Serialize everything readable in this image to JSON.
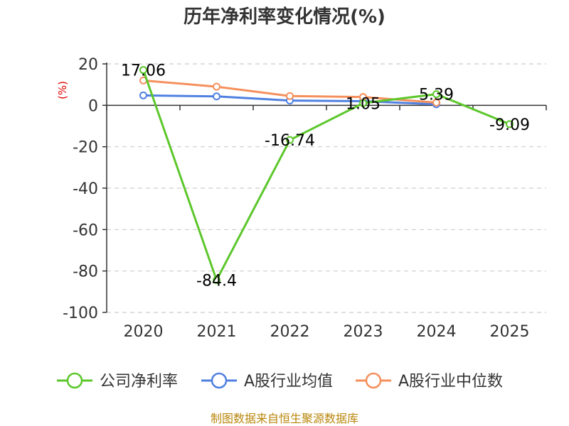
{
  "chart_data": {
    "type": "line",
    "title": "历年净利率变化情况(%)",
    "ylabel": "(%)",
    "xlabel": "",
    "ylim": [
      -100,
      20
    ],
    "yticks": [
      20,
      0,
      -20,
      -40,
      -60,
      -80,
      -100
    ],
    "categories": [
      "2020",
      "2021",
      "2022",
      "2023",
      "2024",
      "2025"
    ],
    "grid": true,
    "legend_position": "bottom",
    "series": [
      {
        "name": "公司净利率",
        "color": "#5cc72b",
        "values": [
          17.06,
          -84.4,
          -16.74,
          1.05,
          5.39,
          -9.09
        ],
        "labels": [
          "17.06",
          "-84.4",
          "-16.74",
          "1.05",
          "5.39",
          "-9.09"
        ]
      },
      {
        "name": "A股行业均值",
        "color": "#4f80e1",
        "values": [
          4.8,
          4.3,
          2.3,
          2.0,
          0.5,
          null
        ]
      },
      {
        "name": "A股行业中位数",
        "color": "#f5905d",
        "values": [
          12.0,
          9.0,
          4.5,
          4.0,
          1.3,
          null
        ]
      }
    ]
  },
  "footer": "制图数据来自恒生聚源数据库"
}
